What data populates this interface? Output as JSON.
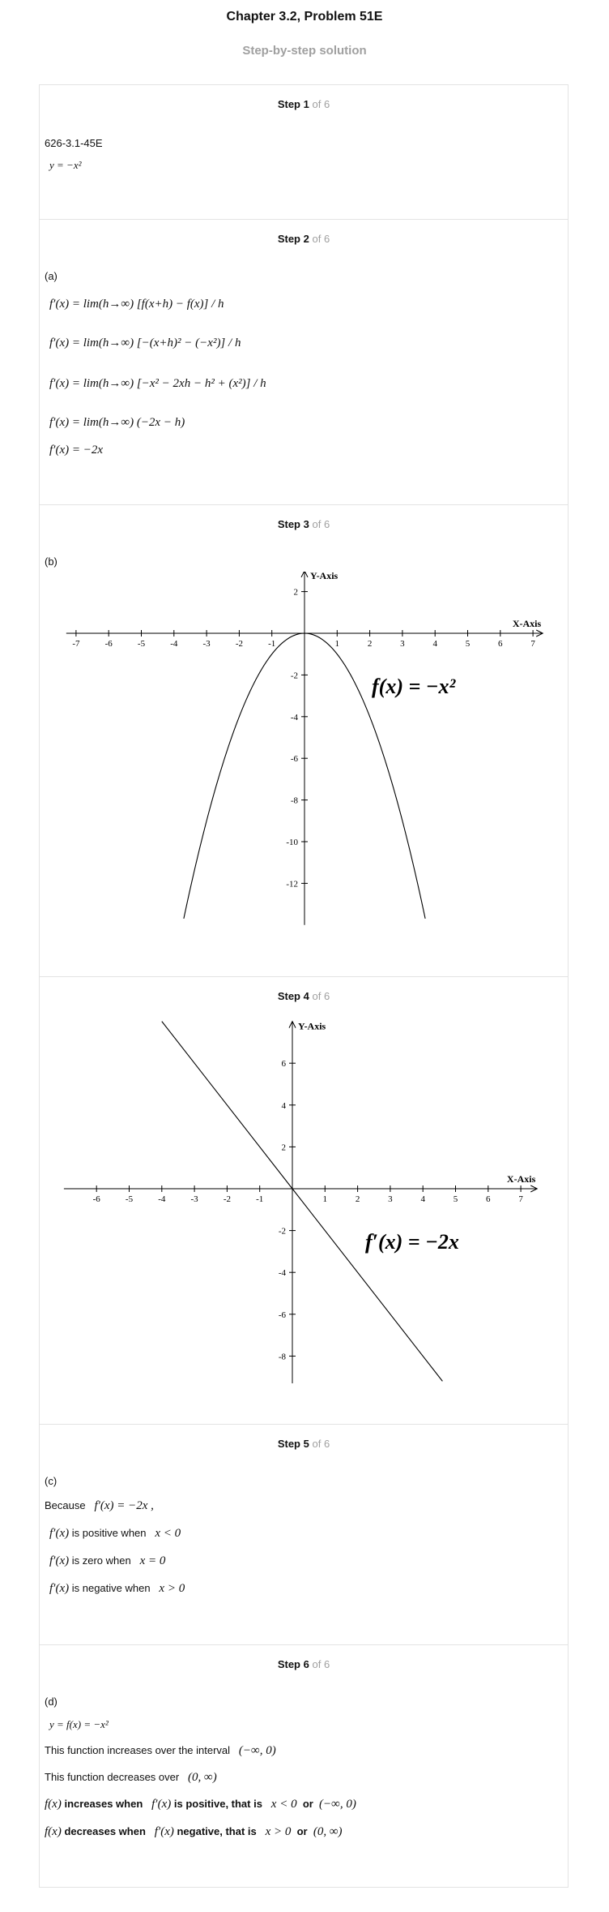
{
  "header": {
    "title": "Chapter 3.2, Problem 51E",
    "subtitle": "Step-by-step solution"
  },
  "step_label": "Step",
  "steps": [
    {
      "num": "1",
      "of": "of 6"
    },
    {
      "num": "2",
      "of": "of 6"
    },
    {
      "num": "3",
      "of": "of 6"
    },
    {
      "num": "4",
      "of": "of 6"
    },
    {
      "num": "5",
      "of": "of 6"
    },
    {
      "num": "6",
      "of": "of 6"
    }
  ],
  "step1": {
    "ref": "626-3.1-45E",
    "eq": "y = −x²"
  },
  "step2": {
    "part": "(a)",
    "lines": [
      "f′(x) = lim(h→∞) [f(x+h) − f(x)] / h",
      "f′(x) = lim(h→∞) [−(x+h)² − (−x²)] / h",
      "f′(x) = lim(h→∞) [−x² − 2xh − h² + (x²)] / h",
      "f′(x) = lim(h→∞) (−2x − h)",
      "f′(x) = −2x"
    ]
  },
  "step3": {
    "part": "(b)",
    "graph_label": "f(x) = −x²",
    "x_axis_label": "X-Axis",
    "y_axis_label": "Y-Axis"
  },
  "step4": {
    "graph_label": "f′(x) = −2x",
    "x_axis_label": "X-Axis",
    "y_axis_label": "Y-Axis"
  },
  "step5": {
    "part": "(c)",
    "because": "Because",
    "because_eq": "f′(x) = −2x ,",
    "fprime": "f′(x)",
    "positive": "is positive when",
    "positive_cond": "x < 0",
    "zero": "is zero when",
    "zero_cond": "x = 0",
    "negative": "is negative when",
    "negative_cond": "x > 0"
  },
  "step6": {
    "part": "(d)",
    "eq": "y = f(x) = −x²",
    "inc_text": "This function increases over the interval",
    "inc_interval": "(−∞, 0)",
    "dec_text": "This function decreases over",
    "dec_interval": "(0, ∞)",
    "fx": "f(x)",
    "fpx": "f′(x)",
    "inc_when": "increases when",
    "inc_pos": "is positive, that is",
    "inc_cond": "x < 0",
    "or": "or",
    "inc_int": "(−∞, 0)",
    "dec_when": "decreases when",
    "dec_neg": "negative, that is",
    "dec_cond": "x > 0",
    "dec_int": "(0, ∞)"
  },
  "chart_data": [
    {
      "type": "line",
      "function": "f(x) = -x^2",
      "x": [
        -3.7,
        -3,
        -2,
        -1,
        0,
        1,
        2,
        3,
        3.7
      ],
      "y": [
        -13.69,
        -9,
        -4,
        -1,
        0,
        -1,
        -4,
        -9,
        -13.69
      ],
      "x_ticks": [
        -7,
        -6,
        -5,
        -4,
        -3,
        -2,
        -1,
        1,
        2,
        3,
        4,
        5,
        6,
        7
      ],
      "y_ticks": [
        2,
        -2,
        -4,
        -6,
        -8,
        -10,
        -12
      ],
      "xlabel": "X-Axis",
      "ylabel": "Y-Axis",
      "annotation": "f(x) = −x²",
      "xlim": [
        -7.3,
        7.3
      ],
      "ylim": [
        -14,
        3
      ]
    },
    {
      "type": "line",
      "function": "f'(x) = -2x",
      "x": [
        -4,
        0,
        4.6
      ],
      "y": [
        8,
        0,
        -9.2
      ],
      "x_ticks": [
        -6,
        -5,
        -4,
        -3,
        -2,
        -1,
        1,
        2,
        3,
        4,
        5,
        6,
        7
      ],
      "y_ticks": [
        6,
        4,
        2,
        -2,
        -4,
        -6,
        -8
      ],
      "xlabel": "X-Axis",
      "ylabel": "Y-Axis",
      "annotation": "f′(x) = −2x",
      "xlim": [
        -7,
        7.5
      ],
      "ylim": [
        -9.3,
        8
      ]
    }
  ]
}
